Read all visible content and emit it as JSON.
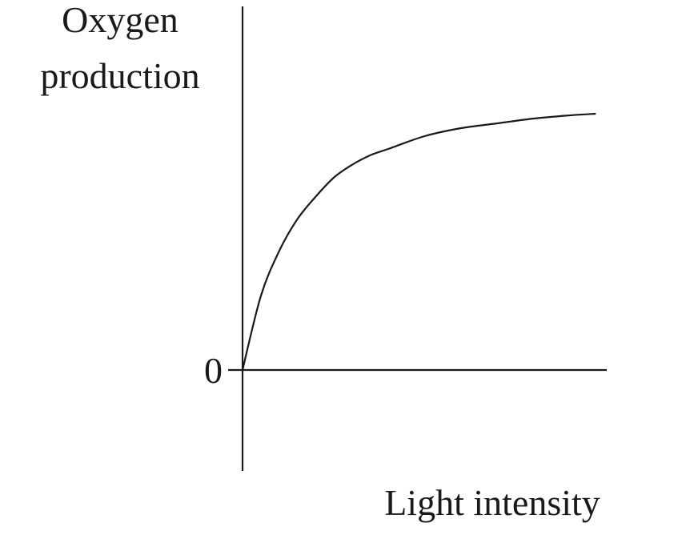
{
  "chart_data": {
    "type": "line",
    "title": "",
    "ylabel_lines": [
      "Oxygen",
      "production"
    ],
    "xlabel": "Light intensity",
    "y_ticks": [
      {
        "value": 0,
        "label": "0"
      }
    ],
    "x_ticks": [],
    "ylim": [
      -0.4,
      1.0
    ],
    "xlim": [
      0,
      1.0
    ],
    "grid": false,
    "legend": "none",
    "series": [
      {
        "x": [
          0,
          0.05,
          0.1,
          0.15,
          0.2,
          0.25,
          0.3,
          0.35,
          0.4,
          0.5,
          0.6,
          0.7,
          0.8,
          0.9,
          0.97
        ],
        "values": [
          0,
          0.23,
          0.37,
          0.47,
          0.54,
          0.6,
          0.64,
          0.67,
          0.69,
          0.73,
          0.755,
          0.77,
          0.785,
          0.795,
          0.8
        ]
      }
    ],
    "colors": {
      "ink": "#1a1a1a",
      "background": "#ffffff"
    }
  }
}
